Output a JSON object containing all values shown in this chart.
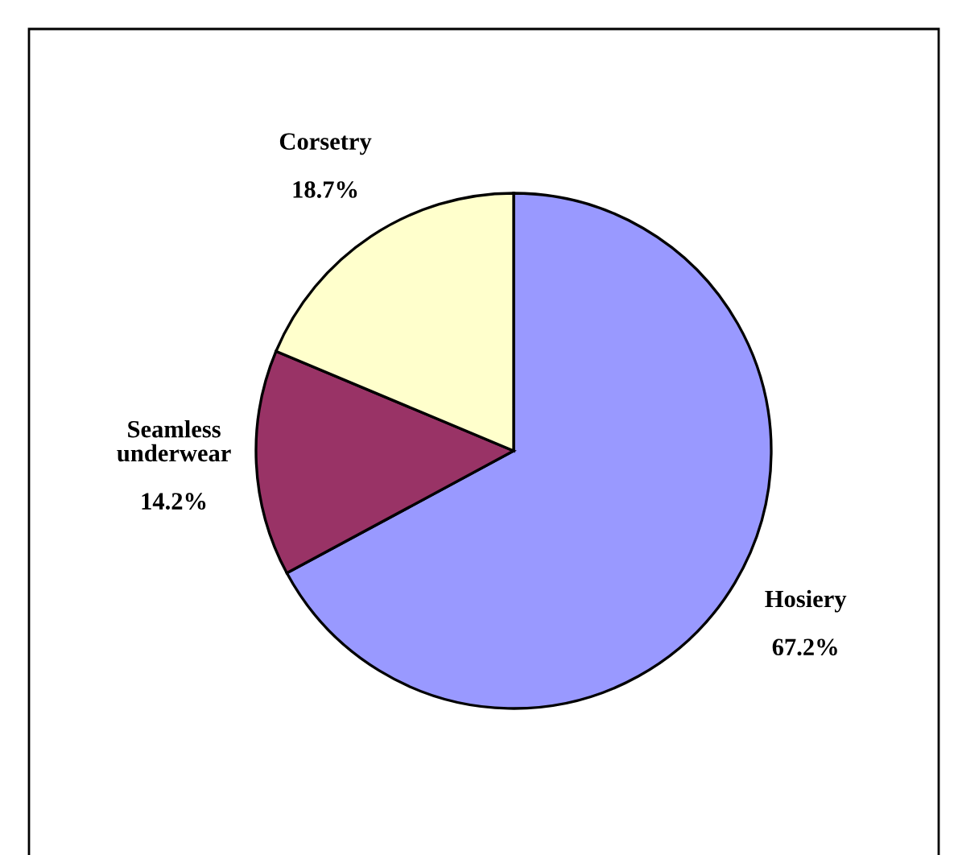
{
  "chart_data": {
    "type": "pie",
    "categories": [
      "Hosiery",
      "Seamless\nunderwear",
      "Corsetry"
    ],
    "values": [
      67.2,
      14.2,
      18.7
    ],
    "colors": [
      "#9999ff",
      "#993366",
      "#ffffcc"
    ],
    "value_labels": [
      "67.2%",
      "14.2%",
      "18.7%"
    ],
    "legend": false
  }
}
